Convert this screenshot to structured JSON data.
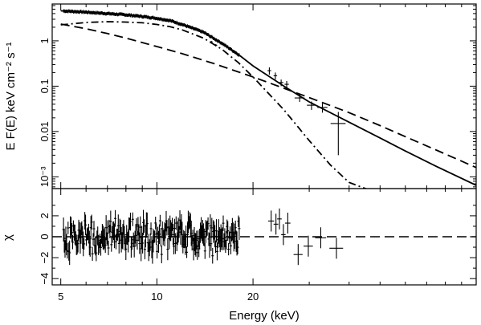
{
  "chart_data": [
    {
      "type": "line",
      "panel": "spectrum",
      "ylabel": "E F(E) keV  cm⁻² s⁻¹",
      "xscale": "log",
      "yscale": "log",
      "xlim": [
        4.7,
        100
      ],
      "ylim": [
        0.00055,
        6.5
      ],
      "yticks": [
        {
          "value": 1,
          "label": "1"
        },
        {
          "value": 0.1,
          "label": "0.1"
        },
        {
          "value": 0.01,
          "label": "0.01"
        },
        {
          "value": 0.001,
          "label": "10⁻³"
        }
      ],
      "series": [
        {
          "style": "solid",
          "x": [
            5,
            6,
            7,
            8,
            9,
            10,
            11,
            12,
            14,
            16,
            18,
            20,
            25,
            30,
            40,
            50,
            60,
            75,
            100
          ],
          "y": [
            4.6,
            4.3,
            4.0,
            3.75,
            3.45,
            3.15,
            2.8,
            2.3,
            1.55,
            0.88,
            0.5,
            0.28,
            0.1,
            0.045,
            0.016,
            0.0072,
            0.0037,
            0.0017,
            0.00065
          ]
        },
        {
          "style": "dash-dot",
          "x": [
            5,
            6,
            7,
            8,
            9,
            10,
            11,
            12,
            14,
            16,
            18,
            20,
            25,
            30,
            35,
            40,
            45,
            50
          ],
          "y": [
            2.25,
            2.55,
            2.65,
            2.6,
            2.5,
            2.3,
            2.05,
            1.75,
            1.15,
            0.65,
            0.33,
            0.16,
            0.03,
            0.0063,
            0.0018,
            0.00075,
            0.00055,
            0.00045
          ]
        },
        {
          "style": "dashed",
          "x": [
            5,
            6,
            7,
            8,
            10,
            12,
            15,
            20,
            25,
            30,
            40,
            50,
            60,
            75,
            100
          ],
          "y": [
            2.35,
            1.85,
            1.45,
            1.15,
            0.75,
            0.52,
            0.32,
            0.16,
            0.09,
            0.056,
            0.026,
            0.0135,
            0.0077,
            0.0039,
            0.0016
          ]
        }
      ],
      "data_points": [
        {
          "x": 14.8,
          "y": 0.95,
          "xerr": 0.15,
          "yerr": 0.05
        },
        {
          "x": 15.3,
          "y": 0.8,
          "xerr": 0.15,
          "yerr": 0.05
        },
        {
          "x": 22.5,
          "y": 0.22,
          "xerr": 0.3,
          "yerr": 0.04
        },
        {
          "x": 23.5,
          "y": 0.17,
          "xerr": 0.3,
          "yerr": 0.03
        },
        {
          "x": 24.5,
          "y": 0.12,
          "xerr": 0.4,
          "yerr": 0.02
        },
        {
          "x": 25.5,
          "y": 0.11,
          "xerr": 0.4,
          "yerr": 0.02
        },
        {
          "x": 28.0,
          "y": 0.055,
          "xerr": 1.0,
          "yerr": 0.01
        },
        {
          "x": 30.5,
          "y": 0.038,
          "xerr": 1.0,
          "yerr": 0.008
        },
        {
          "x": 33.0,
          "y": 0.034,
          "xerr": 1.2,
          "yerr": 0.008
        },
        {
          "x": 37.0,
          "y": 0.015,
          "xerr": 2.0,
          "yerr": 0.012
        }
      ]
    },
    {
      "type": "scatter",
      "panel": "residuals",
      "xlabel": "Energy (keV)",
      "ylabel": "χ",
      "xscale": "log",
      "xlim": [
        4.7,
        100
      ],
      "ylim": [
        -4.6,
        4.6
      ],
      "xticks": [
        {
          "value": 5,
          "label": "5"
        },
        {
          "value": 10,
          "label": "10"
        },
        {
          "value": 20,
          "label": "20"
        }
      ],
      "yticks": [
        {
          "value": 2,
          "label": "2"
        },
        {
          "value": 0,
          "label": "0"
        },
        {
          "value": -2,
          "label": "−2"
        },
        {
          "value": -4,
          "label": "−4"
        }
      ],
      "zero_line": "dashed",
      "points": [
        {
          "x": 22.8,
          "y": 1.5,
          "xerr": 0.5,
          "yerr": 1.0
        },
        {
          "x": 23.6,
          "y": 1.2,
          "xerr": 0.4,
          "yerr": 1.0
        },
        {
          "x": 24.2,
          "y": 1.7,
          "xerr": 0.4,
          "yerr": 1.0
        },
        {
          "x": 24.9,
          "y": 0.2,
          "xerr": 0.4,
          "yerr": 1.0
        },
        {
          "x": 25.7,
          "y": 1.3,
          "xerr": 0.5,
          "yerr": 1.0
        },
        {
          "x": 27.7,
          "y": -1.7,
          "xerr": 0.9,
          "yerr": 1.0
        },
        {
          "x": 29.8,
          "y": -0.9,
          "xerr": 1.0,
          "yerr": 1.0
        },
        {
          "x": 32.6,
          "y": -0.1,
          "xerr": 1.3,
          "yerr": 1.0
        },
        {
          "x": 36.5,
          "y": -1.1,
          "xerr": 1.8,
          "yerr": 1.0
        }
      ]
    }
  ]
}
